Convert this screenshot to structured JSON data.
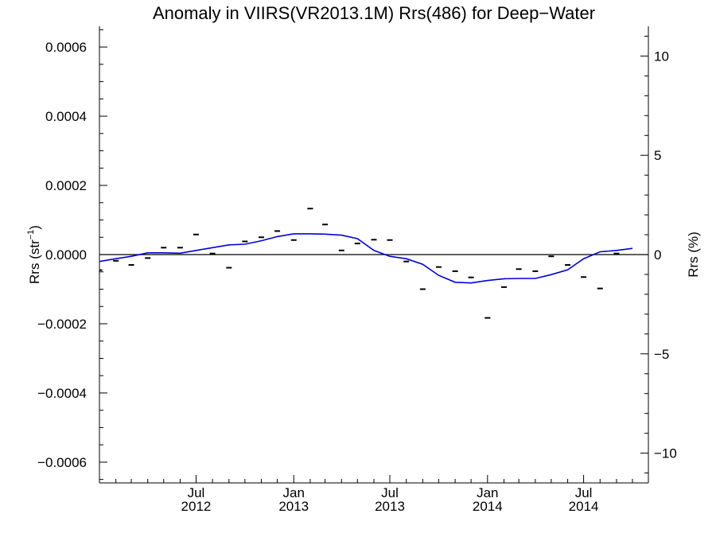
{
  "chart_data": {
    "type": "line",
    "title": "Anomaly in VIIRS(VR2013.1M) Rrs(486) for Deep−Water",
    "ylabel_left": "Rrs (str",
    "ylabel_left_sup": "−1",
    "ylabel_left_close": ")",
    "ylabel_right": "Rrs (%)",
    "xlim": [
      "2012-01-01",
      "2014-10-31"
    ],
    "ylim_left": [
      -0.00066,
      0.00066
    ],
    "ylim_right": [
      -11.5,
      11.5
    ],
    "grid": false,
    "x_ticks": [
      {
        "date": "2012-07-01",
        "line1": "Jul",
        "line2": "2012"
      },
      {
        "date": "2013-01-01",
        "line1": "Jan",
        "line2": "2013"
      },
      {
        "date": "2013-07-01",
        "line1": "Jul",
        "line2": "2013"
      },
      {
        "date": "2014-01-01",
        "line1": "Jan",
        "line2": "2014"
      },
      {
        "date": "2014-07-01",
        "line1": "Jul",
        "line2": "2014"
      }
    ],
    "y_ticks_left": [
      {
        "value": 0.0006,
        "label": "0.0006"
      },
      {
        "value": 0.0004,
        "label": "0.0004"
      },
      {
        "value": 0.0002,
        "label": "0.0002"
      },
      {
        "value": 0.0,
        "label": "0.0000"
      },
      {
        "value": -0.0002,
        "label": "−0.0002"
      },
      {
        "value": -0.0004,
        "label": "−0.0004"
      },
      {
        "value": -0.0006,
        "label": "−0.0006"
      }
    ],
    "y_ticks_right": [
      {
        "value": 10,
        "label": "10"
      },
      {
        "value": 5,
        "label": "5"
      },
      {
        "value": 0,
        "label": "0"
      },
      {
        "value": -5,
        "label": "−5"
      },
      {
        "value": -10,
        "label": "−10"
      }
    ],
    "reference_line": {
      "value": 0.0,
      "color": "#000000"
    },
    "series": [
      {
        "kind": "points",
        "marker": "dash",
        "color": "#000000",
        "x": [
          "2012-01-01",
          "2012-02-01",
          "2012-03-01",
          "2012-04-01",
          "2012-05-01",
          "2012-06-01",
          "2012-07-01",
          "2012-08-01",
          "2012-09-01",
          "2012-10-01",
          "2012-11-01",
          "2012-12-01",
          "2013-01-01",
          "2013-02-01",
          "2013-03-01",
          "2013-04-01",
          "2013-05-01",
          "2013-06-01",
          "2013-07-01",
          "2013-08-01",
          "2013-09-01",
          "2013-10-01",
          "2013-11-01",
          "2013-12-01",
          "2014-01-01",
          "2014-02-01",
          "2014-03-01",
          "2014-04-01",
          "2014-05-01",
          "2014-06-01",
          "2014-07-01",
          "2014-08-01",
          "2014-09-01"
        ],
        "y": [
          -4.5e-05,
          -1.8e-05,
          -3e-05,
          -1e-05,
          2e-05,
          2e-05,
          5.8e-05,
          3e-06,
          -3.8e-05,
          3.8e-05,
          5e-05,
          6.8e-05,
          4.2e-05,
          0.000133,
          8.7e-05,
          1.2e-05,
          3.2e-05,
          4.3e-05,
          4.2e-05,
          -2e-05,
          -0.0001,
          -3.6e-05,
          -4.8e-05,
          -6.6e-05,
          -0.000183,
          -9.4e-05,
          -4.2e-05,
          -4.8e-05,
          -5e-06,
          -3e-05,
          -6.5e-05,
          -9.8e-05,
          3e-06
        ]
      },
      {
        "kind": "line",
        "color": "#0000dd",
        "x": [
          "2011-12-01",
          "2012-01-01",
          "2012-02-01",
          "2012-03-01",
          "2012-04-01",
          "2012-05-01",
          "2012-06-01",
          "2012-07-01",
          "2012-08-01",
          "2012-09-01",
          "2012-10-01",
          "2012-11-01",
          "2012-12-01",
          "2013-01-01",
          "2013-02-01",
          "2013-03-01",
          "2013-04-01",
          "2013-05-01",
          "2013-06-01",
          "2013-07-01",
          "2013-08-01",
          "2013-09-01",
          "2013-10-01",
          "2013-11-01",
          "2013-12-01",
          "2014-01-01",
          "2014-02-01",
          "2014-03-01",
          "2014-04-01",
          "2014-05-01",
          "2014-06-01",
          "2014-07-01",
          "2014-08-01",
          "2014-09-01",
          "2014-10-01"
        ],
        "y": [
          -3.5e-05,
          -2e-05,
          -1.2e-05,
          -5e-06,
          5e-06,
          5e-06,
          4e-06,
          1.2e-05,
          2e-05,
          2.8e-05,
          3e-05,
          4e-05,
          5.2e-05,
          6e-05,
          6e-05,
          5.9e-05,
          5.6e-05,
          4.6e-05,
          1.2e-05,
          -5e-06,
          -1.2e-05,
          -2.8e-05,
          -6e-05,
          -8e-05,
          -8.2e-05,
          -7.5e-05,
          -7e-05,
          -6.9e-05,
          -6.9e-05,
          -5.8e-05,
          -4.4e-05,
          -1.2e-05,
          8e-06,
          1.2e-05,
          1.8e-05
        ]
      }
    ]
  }
}
